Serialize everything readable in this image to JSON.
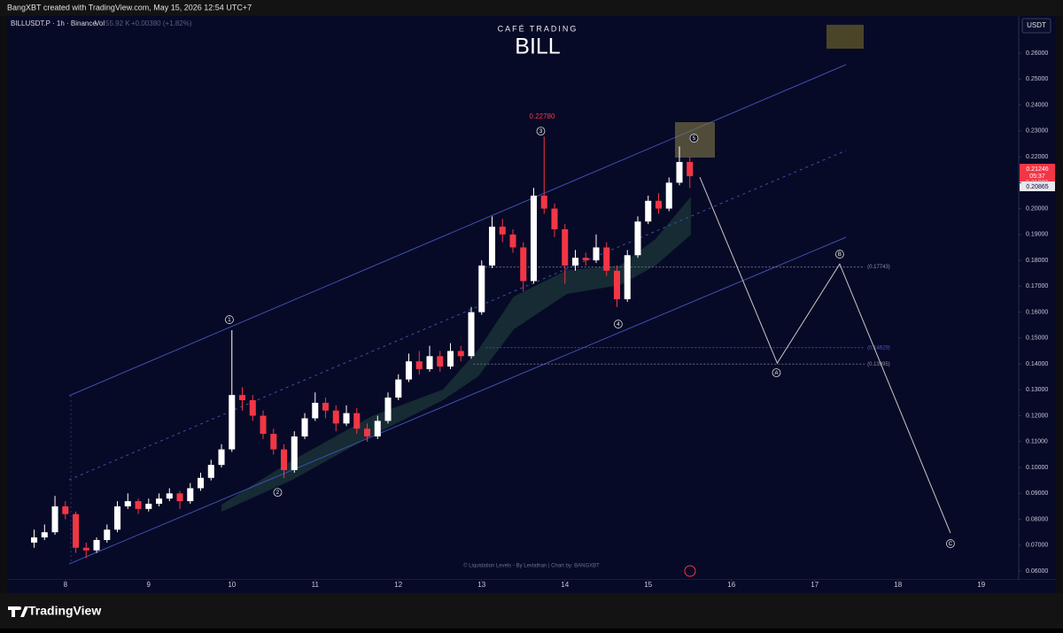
{
  "header": {
    "credit": "BangXBT created with TradingView.com, May 15, 2026 12:54 UTC+7",
    "symbol": "BILLUSDT.P · 1h · Binance",
    "vol": "Vol",
    "vol_value": "55.92 K",
    "change": "+0.00380 (+1.82%)",
    "currency": "USDT"
  },
  "chart_data": {
    "type": "candlestick",
    "title": "CAFÉ TRADING",
    "subtitle": "BILL",
    "x": [
      7.625,
      7.75,
      7.875,
      8.0,
      8.125,
      8.25,
      8.375,
      8.5,
      8.625,
      8.75,
      8.875,
      9.0,
      9.125,
      9.25,
      9.375,
      9.5,
      9.625,
      9.75,
      9.875,
      10.0,
      10.125,
      10.25,
      10.375,
      10.5,
      10.625,
      10.75,
      10.875,
      11.0,
      11.125,
      11.25,
      11.375,
      11.5,
      11.625,
      11.75,
      11.875,
      12.0,
      12.125,
      12.25,
      12.375,
      12.5,
      12.625,
      12.75,
      12.875,
      13.0,
      13.125,
      13.25,
      13.375,
      13.5,
      13.625,
      13.75,
      13.875,
      14.0,
      14.125,
      14.25,
      14.375,
      14.5,
      14.625,
      14.75,
      14.875,
      15.0,
      15.125,
      15.25,
      15.375,
      15.5
    ],
    "open": [
      0.071,
      0.073,
      0.075,
      0.085,
      0.082,
      0.069,
      0.068,
      0.072,
      0.076,
      0.085,
      0.087,
      0.084,
      0.086,
      0.088,
      0.09,
      0.087,
      0.092,
      0.096,
      0.101,
      0.107,
      0.128,
      0.126,
      0.12,
      0.113,
      0.107,
      0.099,
      0.112,
      0.119,
      0.125,
      0.122,
      0.117,
      0.121,
      0.115,
      0.112,
      0.118,
      0.127,
      0.134,
      0.141,
      0.138,
      0.143,
      0.139,
      0.145,
      0.143,
      0.16,
      0.178,
      0.193,
      0.19,
      0.185,
      0.172,
      0.205,
      0.2,
      0.192,
      0.178,
      0.181,
      0.18,
      0.185,
      0.176,
      0.165,
      0.182,
      0.195,
      0.203,
      0.2,
      0.21,
      0.218
    ],
    "high": [
      0.076,
      0.078,
      0.089,
      0.087,
      0.083,
      0.071,
      0.073,
      0.078,
      0.087,
      0.09,
      0.088,
      0.088,
      0.09,
      0.092,
      0.091,
      0.094,
      0.098,
      0.103,
      0.109,
      0.153,
      0.131,
      0.128,
      0.122,
      0.115,
      0.109,
      0.114,
      0.121,
      0.129,
      0.127,
      0.124,
      0.124,
      0.123,
      0.117,
      0.12,
      0.129,
      0.136,
      0.144,
      0.145,
      0.147,
      0.145,
      0.148,
      0.147,
      0.162,
      0.18,
      0.197,
      0.196,
      0.192,
      0.187,
      0.208,
      0.2278,
      0.202,
      0.194,
      0.184,
      0.183,
      0.19,
      0.187,
      0.178,
      0.184,
      0.197,
      0.205,
      0.206,
      0.212,
      0.224,
      0.22
    ],
    "low": [
      0.069,
      0.072,
      0.074,
      0.08,
      0.067,
      0.065,
      0.067,
      0.071,
      0.075,
      0.084,
      0.082,
      0.083,
      0.085,
      0.087,
      0.084,
      0.086,
      0.091,
      0.095,
      0.1,
      0.106,
      0.122,
      0.118,
      0.111,
      0.105,
      0.096,
      0.098,
      0.111,
      0.118,
      0.119,
      0.114,
      0.116,
      0.113,
      0.11,
      0.111,
      0.117,
      0.126,
      0.133,
      0.136,
      0.137,
      0.137,
      0.138,
      0.141,
      0.142,
      0.159,
      0.177,
      0.187,
      0.183,
      0.168,
      0.171,
      0.198,
      0.189,
      0.171,
      0.176,
      0.178,
      0.179,
      0.174,
      0.162,
      0.164,
      0.181,
      0.194,
      0.198,
      0.199,
      0.209,
      0.208
    ],
    "close": [
      0.073,
      0.075,
      0.085,
      0.082,
      0.069,
      0.068,
      0.072,
      0.076,
      0.085,
      0.087,
      0.084,
      0.086,
      0.088,
      0.09,
      0.087,
      0.092,
      0.096,
      0.101,
      0.107,
      0.128,
      0.126,
      0.12,
      0.113,
      0.107,
      0.099,
      0.112,
      0.119,
      0.125,
      0.122,
      0.117,
      0.121,
      0.115,
      0.112,
      0.118,
      0.127,
      0.134,
      0.141,
      0.138,
      0.143,
      0.139,
      0.145,
      0.143,
      0.16,
      0.178,
      0.193,
      0.19,
      0.185,
      0.172,
      0.205,
      0.2,
      0.192,
      0.178,
      0.181,
      0.18,
      0.185,
      0.176,
      0.165,
      0.182,
      0.195,
      0.203,
      0.2,
      0.21,
      0.218,
      0.2125
    ],
    "up_color": "#ffffff",
    "down_color": "#f23645",
    "xlim": [
      7.3,
      19.45
    ],
    "xticks": [
      8,
      9,
      10,
      11,
      12,
      13,
      14,
      15,
      16,
      17,
      18,
      19
    ],
    "ylim": [
      0.0566,
      0.2744
    ],
    "yticks": [
      {
        "value": 0.06,
        "label": "0.06000"
      },
      {
        "value": 0.07,
        "label": "0.07000"
      },
      {
        "value": 0.08,
        "label": "0.08000"
      },
      {
        "value": 0.09,
        "label": "0.09000"
      },
      {
        "value": 0.1,
        "label": "0.10000"
      },
      {
        "value": 0.11,
        "label": "0.11000"
      },
      {
        "value": 0.12,
        "label": "0.12000"
      },
      {
        "value": 0.13,
        "label": "0.13000"
      },
      {
        "value": 0.14,
        "label": "0.14000"
      },
      {
        "value": 0.15,
        "label": "0.15000"
      },
      {
        "value": 0.16,
        "label": "0.16000"
      },
      {
        "value": 0.17,
        "label": "0.17000"
      },
      {
        "value": 0.18,
        "label": "0.18000"
      },
      {
        "value": 0.19,
        "label": "0.19000"
      },
      {
        "value": 0.2,
        "label": "0.20000"
      },
      {
        "value": 0.21,
        "label": "0.21000"
      },
      {
        "value": 0.22,
        "label": "0.22000"
      },
      {
        "value": 0.23,
        "label": "0.23000"
      },
      {
        "value": 0.24,
        "label": "0.24000"
      },
      {
        "value": 0.25,
        "label": "0.25000"
      },
      {
        "value": 0.26,
        "label": "0.26000"
      }
    ],
    "grid": false,
    "projection": {
      "x": [
        15.62,
        16.55,
        17.3,
        18.63
      ],
      "y": [
        0.2121,
        0.1403,
        0.1786,
        0.0747
      ],
      "color": "#c8c8c8"
    },
    "waves": [
      {
        "label": "1",
        "x": 9.97,
        "y": 0.1571
      },
      {
        "label": "2",
        "x": 10.55,
        "y": 0.0904
      },
      {
        "label": "3",
        "x": 13.71,
        "y": 0.2299
      },
      {
        "label": "4",
        "x": 14.64,
        "y": 0.1554
      },
      {
        "label": "5",
        "x": 15.55,
        "y": 0.2272
      },
      {
        "label": "A",
        "x": 16.54,
        "y": 0.1366
      },
      {
        "label": "B",
        "x": 17.3,
        "y": 0.1824
      },
      {
        "label": "C",
        "x": 18.63,
        "y": 0.0706
      }
    ],
    "levels": [
      {
        "value": 0.17743,
        "label": "(0.17743)",
        "from": 13.0,
        "to": 17.6
      },
      {
        "value": 0.14629,
        "label": "(0.14629)",
        "from": 13.05,
        "to": 17.6
      },
      {
        "value": 0.13995,
        "label": "(0.13995)",
        "from": 12.9,
        "to": 17.6
      }
    ],
    "high_annotation": "0.22780",
    "price_tag": "0.21246",
    "countdown": "05:37",
    "prev_tag": "0.20865",
    "footer": "© Liquidation Levels - By Leviathan | Chart by: BANGXBT"
  },
  "brand": "TradingView"
}
